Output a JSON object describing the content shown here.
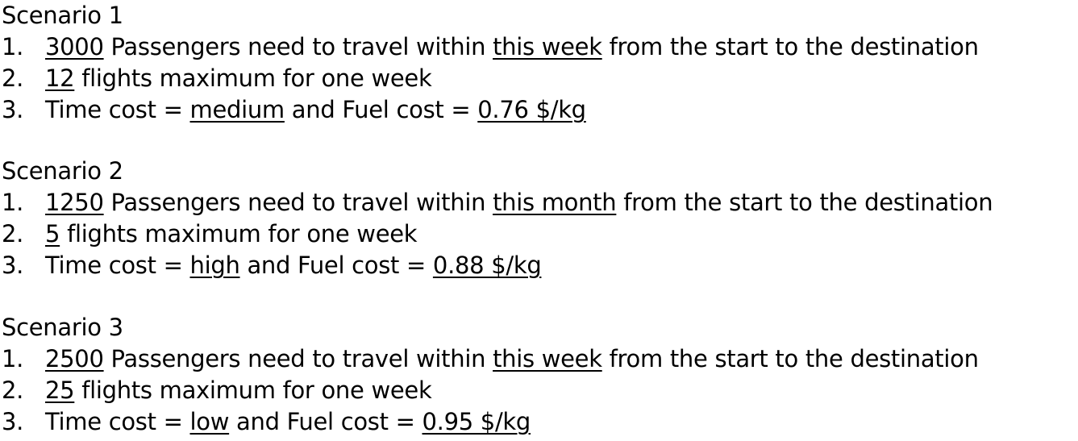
{
  "scenarios": [
    {
      "title": "Scenario 1",
      "items": [
        {
          "num": "1.",
          "passengers": "3000",
          "t1": " Passengers need to travel within ",
          "period": "this week",
          "t2": " from the start to the destination"
        },
        {
          "num": "2.",
          "flights": "12",
          "t1": " flights maximum for one week"
        },
        {
          "num": "3.",
          "t0": "Time cost = ",
          "time_cost": "medium",
          "t1": " and Fuel cost = ",
          "fuel_cost": "0.76 $/kg"
        }
      ]
    },
    {
      "title": "Scenario 2",
      "items": [
        {
          "num": "1.",
          "passengers": "1250",
          "t1": " Passengers need to travel within ",
          "period": "this month",
          "t2": " from the start to the destination"
        },
        {
          "num": "2.",
          "flights": "5",
          "t1": " flights maximum for one week"
        },
        {
          "num": "3.",
          "t0": "Time cost = ",
          "time_cost": "high",
          "t1": " and Fuel cost = ",
          "fuel_cost": "0.88 $/kg"
        }
      ]
    },
    {
      "title": "Scenario 3",
      "items": [
        {
          "num": "1.",
          "passengers": "2500",
          "t1": " Passengers need to travel within ",
          "period": "this week",
          "t2": " from the start to the destination"
        },
        {
          "num": "2.",
          "flights": "25",
          "t1": " flights maximum for one week"
        },
        {
          "num": "3.",
          "t0": "Time cost = ",
          "time_cost": "low",
          "t1": " and Fuel cost = ",
          "fuel_cost": "0.95 $/kg"
        }
      ]
    }
  ]
}
